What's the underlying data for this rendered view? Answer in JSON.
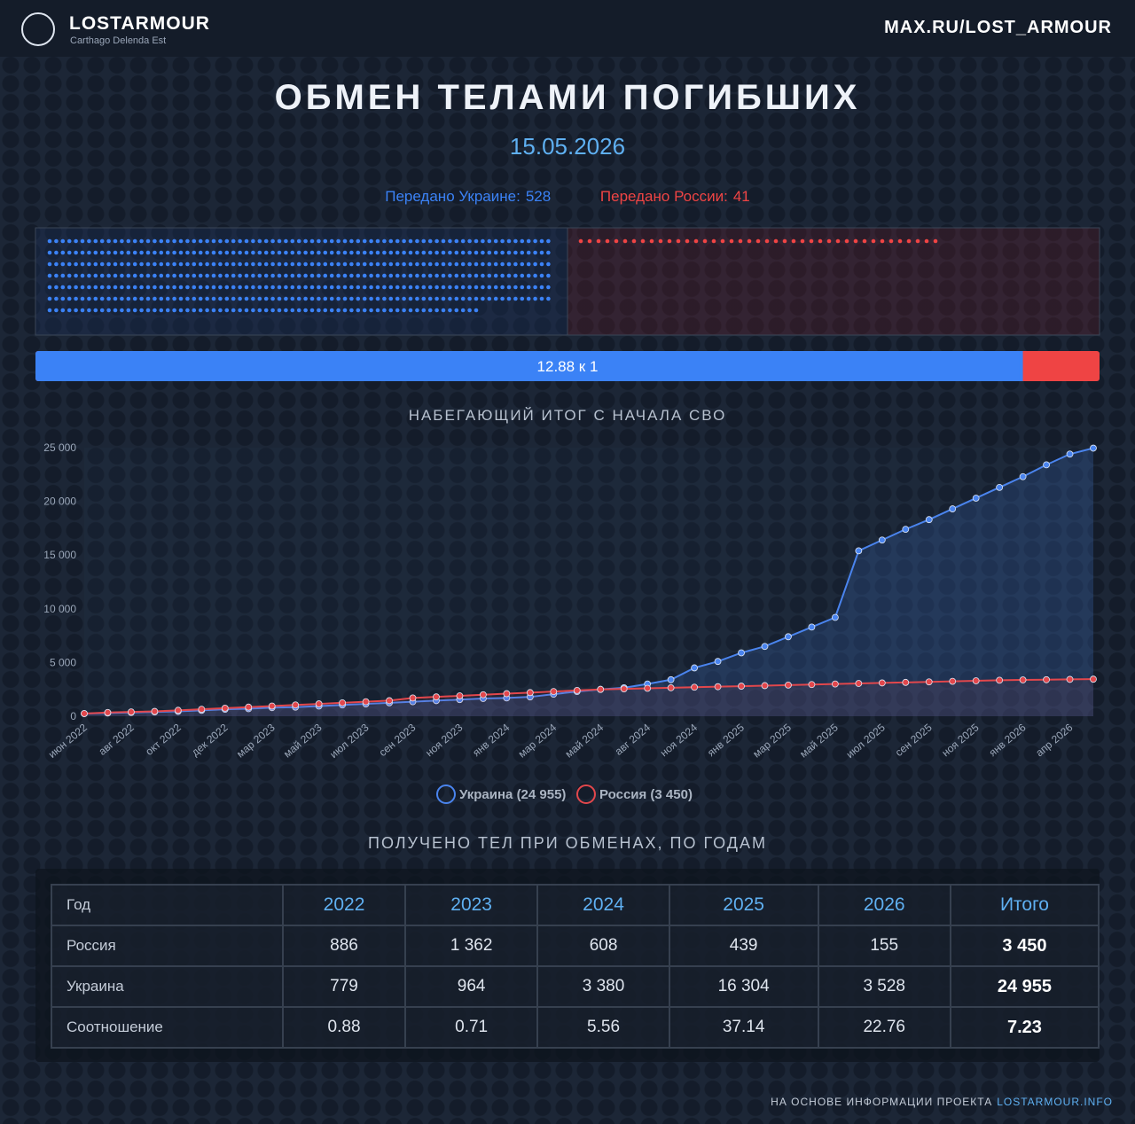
{
  "header": {
    "brand": "LOSTARMOUR",
    "tagline": "Carthago Delenda Est",
    "link": "MAX.RU/LOST_ARMOUR"
  },
  "title": "ОБМЕН ТЕЛАМИ ПОГИБШИХ",
  "date": "15.05.2026",
  "exchange": {
    "ukraine_label": "Передано Украине:",
    "ukraine_count": 528,
    "ukraine_color": "#3b82f6",
    "russia_label": "Передано России:",
    "russia_count": 41,
    "russia_color": "#ef4444",
    "ratio_label": "12.88 к 1"
  },
  "chart_data": {
    "type": "line",
    "title": "НАБЕГАЮЩИЙ ИТОГ С НАЧАЛА СВО",
    "categories": [
      "июн 2022",
      null,
      "авг 2022",
      null,
      "окт 2022",
      null,
      "дек 2022",
      null,
      "мар 2023",
      null,
      "май 2023",
      null,
      "июл 2023",
      null,
      "сен 2023",
      null,
      "ноя 2023",
      null,
      "янв 2024",
      null,
      "мар 2024",
      null,
      "май 2024",
      null,
      "авг 2024",
      null,
      "ноя 2024",
      null,
      "янв 2025",
      null,
      "мар 2025",
      null,
      "май 2025",
      null,
      "июл 2025",
      null,
      "сен 2025",
      null,
      "ноя 2025",
      null,
      "янв 2026",
      null,
      "апр 2026",
      null
    ],
    "series": [
      {
        "name": "Украина (24 955)",
        "color": "#4a84ee",
        "values": [
          250,
          300,
          350,
          400,
          450,
          550,
          650,
          700,
          800,
          850,
          950,
          1050,
          1150,
          1250,
          1350,
          1450,
          1550,
          1650,
          1700,
          1800,
          2050,
          2300,
          2500,
          2650,
          3000,
          3400,
          4500,
          5100,
          5900,
          6500,
          7400,
          8300,
          9200,
          15400,
          16400,
          17400,
          18300,
          19300,
          20300,
          21300,
          22300,
          23400,
          24400,
          24955
        ]
      },
      {
        "name": "Россия (3 450)",
        "color": "#e2474c",
        "values": [
          250,
          350,
          400,
          450,
          550,
          650,
          750,
          850,
          950,
          1050,
          1150,
          1250,
          1350,
          1450,
          1700,
          1800,
          1900,
          2000,
          2100,
          2200,
          2300,
          2400,
          2500,
          2550,
          2600,
          2650,
          2700,
          2750,
          2800,
          2850,
          2900,
          2950,
          3000,
          3050,
          3100,
          3150,
          3200,
          3250,
          3300,
          3350,
          3380,
          3400,
          3430,
          3450
        ]
      }
    ],
    "ylim": [
      0,
      25000
    ],
    "yticks": [
      0,
      {
        "value": 5000,
        "label": "5 000"
      },
      {
        "value": 10000,
        "label": "10 000"
      },
      {
        "value": 15000,
        "label": "15 000"
      },
      {
        "value": 20000,
        "label": "20 000"
      },
      {
        "value": 25000,
        "label": "25 000"
      }
    ],
    "grid": false,
    "legend": "bottom"
  },
  "table": {
    "title": "ПОЛУЧЕНО ТЕЛ ПРИ ОБМЕНАХ, ПО ГОДАМ",
    "header": [
      "Год",
      "2022",
      "2023",
      "2024",
      "2025",
      "2026",
      "Итого"
    ],
    "rows": [
      [
        "Россия",
        "886",
        "1 362",
        "608",
        "439",
        "155",
        "3 450"
      ],
      [
        "Украина",
        "779",
        "964",
        "3 380",
        "16 304",
        "3 528",
        "24 955"
      ],
      [
        "Соотношение",
        "0.88",
        "0.71",
        "5.56",
        "37.14",
        "22.76",
        "7.23"
      ]
    ]
  },
  "footer": {
    "text": "НА ОСНОВЕ ИНФОРМАЦИИ ПРОЕКТА",
    "link": "LOSTARMOUR.INFO"
  }
}
